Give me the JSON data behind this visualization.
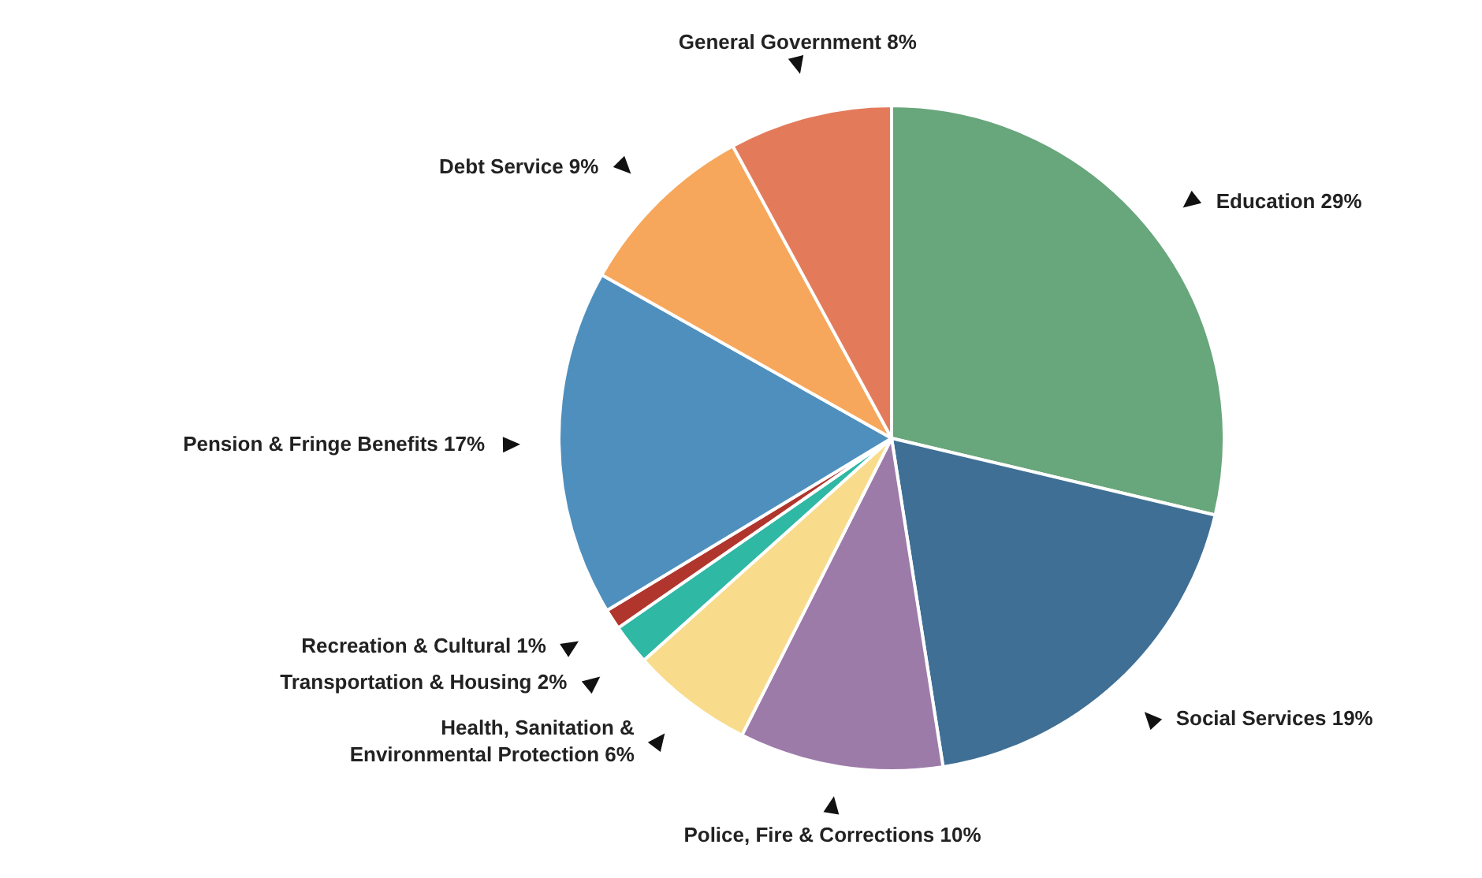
{
  "chart_data": {
    "type": "pie",
    "categories": [
      "Education",
      "Social Services",
      "Police, Fire & Corrections",
      "Health, Sanitation & Environmental Protection",
      "Transportation & Housing",
      "Recreation & Cultural",
      "Pension & Fringe Benefits",
      "Debt Service",
      "General Government"
    ],
    "values": [
      29,
      19,
      10,
      6,
      2,
      1,
      17,
      9,
      8
    ],
    "value_labels": [
      "29%",
      "19%",
      "10%",
      "6%",
      "2%",
      "1%",
      "17%",
      "9%",
      "8%"
    ],
    "colors": [
      "#68a67b",
      "#3f6f95",
      "#9d7ba9",
      "#f8dc8c",
      "#2fb8a3",
      "#b0362d",
      "#4f8fbe",
      "#f6a75b",
      "#e37b5b"
    ],
    "legend": false
  }
}
